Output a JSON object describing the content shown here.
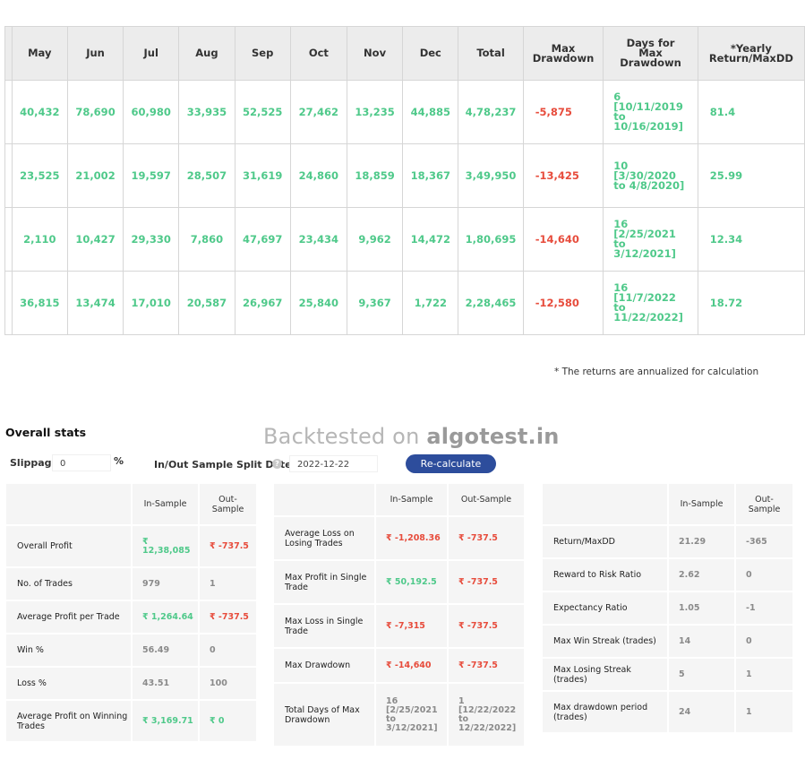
{
  "monthly": {
    "headers": [
      "May",
      "Jun",
      "Jul",
      "Aug",
      "Sep",
      "Oct",
      "Nov",
      "Dec",
      "Total",
      "Max Drawdown",
      "Days for Max Drawdown",
      "*Yearly Return/MaxDD"
    ],
    "rows": [
      {
        "may": "40,432",
        "jun": "78,690",
        "jul": "60,980",
        "aug": "33,935",
        "sep": "52,525",
        "oct": "27,462",
        "nov": "13,235",
        "dec": "44,885",
        "total": "4,78,237",
        "maxdd": "-5,875",
        "days": "6 [10/11/2019 to 10/16/2019]",
        "ratio": "81.4"
      },
      {
        "may": "23,525",
        "jun": "21,002",
        "jul": "19,597",
        "aug": "28,507",
        "sep": "31,619",
        "oct": "24,860",
        "nov": "18,859",
        "dec": "18,367",
        "total": "3,49,950",
        "maxdd": "-13,425",
        "days": "10 [3/30/2020 to 4/8/2020]",
        "ratio": "25.99"
      },
      {
        "may": "2,110",
        "jun": "10,427",
        "jul": "29,330",
        "aug": "7,860",
        "sep": "47,697",
        "oct": "23,434",
        "nov": "9,962",
        "dec": "14,472",
        "total": "1,80,695",
        "maxdd": "-14,640",
        "days": "16 [2/25/2021 to 3/12/2021]",
        "ratio": "12.34"
      },
      {
        "may": "36,815",
        "jun": "13,474",
        "jul": "17,010",
        "aug": "20,587",
        "sep": "26,967",
        "oct": "25,840",
        "nov": "9,367",
        "dec": "1,722",
        "total": "2,28,465",
        "maxdd": "-12,580",
        "days": "16 [11/7/2022 to 11/22/2022]",
        "ratio": "18.72"
      }
    ]
  },
  "note": "* The returns are annualized for calculation",
  "overall_title": "Overall stats",
  "watermark": {
    "prefix": "Backtested on",
    "brand": "algotest.in"
  },
  "controls": {
    "slippage_label": "Slippage:",
    "slippage_value": "0",
    "slippage_unit": "%",
    "split_label": "In/Out Sample Split Date:",
    "help_glyph": "?",
    "split_date": "2022-12-22",
    "recalc_label": "Re-calculate"
  },
  "stats_header": {
    "in": "In-Sample",
    "out": "Out-Sample"
  },
  "stats1": [
    {
      "label": "Overall Profit",
      "in": "₹ 12,38,085",
      "out": "₹ -737.5"
    },
    {
      "label": "No. of Trades",
      "in": "979",
      "out": "1"
    },
    {
      "label": "Average Profit per Trade",
      "in": "₹ 1,264.64",
      "out": "₹ -737.5"
    },
    {
      "label": "Win %",
      "in": "56.49",
      "out": "0"
    },
    {
      "label": "Loss %",
      "in": "43.51",
      "out": "100"
    },
    {
      "label": "Average Profit on Winning Trades",
      "in": "₹ 3,169.71",
      "out": "₹ 0"
    }
  ],
  "stats2": [
    {
      "label": "Average Loss on Losing Trades",
      "in": "₹ -1,208.36",
      "out": "₹ -737.5"
    },
    {
      "label": "Max Profit in Single Trade",
      "in": "₹ 50,192.5",
      "out": "₹ -737.5"
    },
    {
      "label": "Max Loss in Single Trade",
      "in": "₹ -7,315",
      "out": "₹ -737.5"
    },
    {
      "label": "Max Drawdown",
      "in": "₹ -14,640",
      "out": "₹ -737.5"
    },
    {
      "label": "Total Days of Max Drawdown",
      "in": "16 [2/25/2021 to 3/12/2021]",
      "out": "1 [12/22/2022 to 12/22/2022]"
    }
  ],
  "stats3": [
    {
      "label": "Return/MaxDD",
      "in": "21.29",
      "out": "-365"
    },
    {
      "label": "Reward to Risk Ratio",
      "in": "2.62",
      "out": "0"
    },
    {
      "label": "Expectancy Ratio",
      "in": "1.05",
      "out": "-1"
    },
    {
      "label": "Max Win Streak (trades)",
      "in": "14",
      "out": "0"
    },
    {
      "label": "Max Losing Streak (trades)",
      "in": "5",
      "out": "1"
    },
    {
      "label": "Max drawdown period (trades)",
      "in": "24",
      "out": "1"
    }
  ],
  "colors": {
    "positive": "#4fc98a",
    "negative": "#e74c3c",
    "button": "#2d4d9c",
    "header_bg": "#ececec"
  }
}
